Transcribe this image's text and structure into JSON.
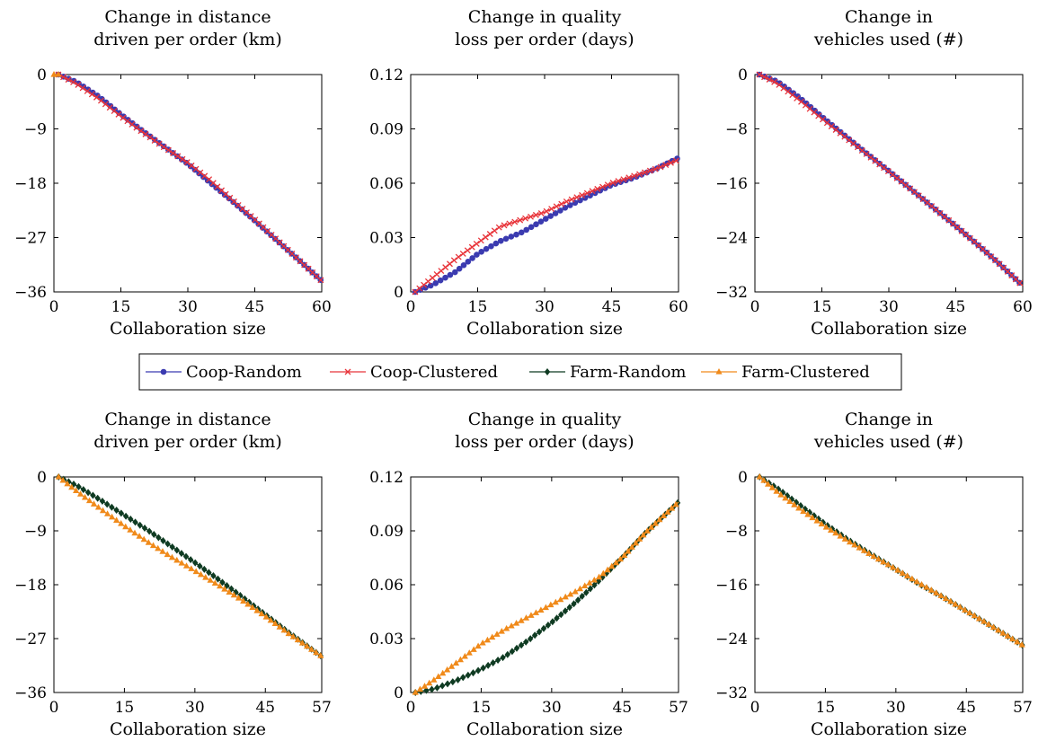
{
  "legend": {
    "entries": [
      {
        "label": "Coop-Random",
        "color": "#3b3bb0",
        "marker": "circle"
      },
      {
        "label": "Coop-Clustered",
        "color": "#e8343a",
        "marker": "x"
      },
      {
        "label": "Farm-Random",
        "color": "#0f3b22",
        "marker": "diamond"
      },
      {
        "label": "Farm-Clustered",
        "color": "#f08a1a",
        "marker": "triangle"
      }
    ]
  },
  "chart_data": [
    {
      "type": "line",
      "title": [
        "Change in distance",
        "driven per order (km)"
      ],
      "xlabel": "Collaboration size",
      "xlim": [
        0,
        60
      ],
      "ylim": [
        -36,
        0
      ],
      "xticks": [
        "0",
        "15",
        "30",
        "45",
        "60"
      ],
      "yticks": [
        "0",
        "−9",
        "−18",
        "−27",
        "−36"
      ],
      "series": [
        {
          "name": "Coop-Random",
          "color": "#3b3bb0",
          "marker": "circle",
          "x": [
            1,
            5,
            10,
            15,
            20,
            25,
            30,
            35,
            40,
            45,
            50,
            55,
            60
          ],
          "y": [
            0,
            -1.2,
            -3.6,
            -6.6,
            -9.4,
            -12.1,
            -14.8,
            -17.9,
            -21.0,
            -24.2,
            -27.5,
            -30.8,
            -34.2
          ]
        },
        {
          "name": "Coop-Clustered",
          "color": "#e8343a",
          "marker": "x",
          "x": [
            1,
            5,
            10,
            15,
            20,
            25,
            30,
            35,
            40,
            45,
            50,
            55,
            60
          ],
          "y": [
            0,
            -1.5,
            -4.0,
            -6.9,
            -9.6,
            -12.2,
            -14.6,
            -17.5,
            -20.8,
            -24.0,
            -27.4,
            -30.8,
            -34.2
          ]
        },
        {
          "name": "Farm-Clustered",
          "color": "#f08a1a",
          "marker": "triangle",
          "x": [
            0,
            1
          ],
          "y": [
            0,
            0
          ]
        }
      ]
    },
    {
      "type": "line",
      "title": [
        "Change in quality",
        "loss per order (days)"
      ],
      "xlabel": "Collaboration size",
      "xlim": [
        0,
        60
      ],
      "ylim": [
        0,
        0.12
      ],
      "xticks": [
        "0",
        "15",
        "30",
        "45",
        "60"
      ],
      "yticks": [
        "0.12",
        "0.09",
        "0.06",
        "0.03",
        "0"
      ],
      "series": [
        {
          "name": "Coop-Random",
          "color": "#3b3bb0",
          "marker": "circle",
          "x": [
            1,
            5,
            10,
            15,
            20,
            25,
            30,
            35,
            40,
            45,
            50,
            55,
            60
          ],
          "y": [
            0,
            0.004,
            0.011,
            0.021,
            0.028,
            0.033,
            0.04,
            0.047,
            0.053,
            0.059,
            0.063,
            0.068,
            0.074
          ]
        },
        {
          "name": "Coop-Clustered",
          "color": "#e8343a",
          "marker": "x",
          "x": [
            1,
            5,
            10,
            15,
            20,
            25,
            30,
            35,
            40,
            45,
            50,
            55,
            60
          ],
          "y": [
            0,
            0.008,
            0.018,
            0.027,
            0.036,
            0.04,
            0.044,
            0.05,
            0.055,
            0.06,
            0.064,
            0.068,
            0.073
          ]
        }
      ]
    },
    {
      "type": "line",
      "title": [
        "Change in",
        "vehicles used (#)"
      ],
      "xlabel": "Collaboration size",
      "xlim": [
        0,
        60
      ],
      "ylim": [
        -32,
        0
      ],
      "xticks": [
        "0",
        "15",
        "30",
        "45",
        "60"
      ],
      "yticks": [
        "0",
        "−8",
        "−16",
        "−24",
        "−32"
      ],
      "series": [
        {
          "name": "Coop-Random",
          "color": "#3b3bb0",
          "marker": "circle",
          "x": [
            1,
            5,
            10,
            15,
            20,
            25,
            30,
            35,
            40,
            45,
            50,
            55,
            60
          ],
          "y": [
            0,
            -1.0,
            -3.4,
            -6.2,
            -8.9,
            -11.6,
            -14.2,
            -16.9,
            -19.6,
            -22.3,
            -25.1,
            -28.0,
            -31.1
          ]
        },
        {
          "name": "Coop-Clustered",
          "color": "#e8343a",
          "marker": "x",
          "x": [
            1,
            5,
            10,
            15,
            20,
            25,
            30,
            35,
            40,
            45,
            50,
            55,
            60
          ],
          "y": [
            0,
            -1.3,
            -3.8,
            -6.5,
            -9.1,
            -11.7,
            -14.3,
            -16.9,
            -19.6,
            -22.3,
            -25.1,
            -28.0,
            -31.1
          ]
        }
      ]
    },
    {
      "type": "line",
      "title": [
        "Change in distance",
        "driven per order (km)"
      ],
      "xlabel": "Collaboration size",
      "xlim": [
        0,
        57
      ],
      "ylim": [
        -36,
        0
      ],
      "xticks": [
        "0",
        "15",
        "30",
        "45",
        "57"
      ],
      "yticks": [
        "0",
        "−9",
        "−18",
        "−27",
        "−36"
      ],
      "series": [
        {
          "name": "Farm-Random",
          "color": "#0f3b22",
          "marker": "diamond",
          "x": [
            1,
            5,
            10,
            15,
            20,
            25,
            30,
            35,
            40,
            45,
            50,
            57
          ],
          "y": [
            0,
            -1.5,
            -3.9,
            -6.4,
            -8.9,
            -11.6,
            -14.3,
            -17.1,
            -20.0,
            -23.0,
            -26.0,
            -30.0
          ]
        },
        {
          "name": "Farm-Clustered",
          "color": "#f08a1a",
          "marker": "triangle",
          "x": [
            1,
            5,
            10,
            15,
            20,
            25,
            30,
            35,
            40,
            45,
            50,
            57
          ],
          "y": [
            0,
            -2.5,
            -5.4,
            -8.2,
            -10.9,
            -13.4,
            -15.7,
            -18.1,
            -20.6,
            -23.3,
            -26.2,
            -30.0
          ]
        }
      ]
    },
    {
      "type": "line",
      "title": [
        "Change in quality",
        "loss per order (days)"
      ],
      "xlabel": "Collaboration size",
      "xlim": [
        0,
        57
      ],
      "ylim": [
        0,
        0.12
      ],
      "xticks": [
        "0",
        "15",
        "30",
        "45",
        "57"
      ],
      "yticks": [
        "0.12",
        "0.09",
        "0.06",
        "0.03",
        "0"
      ],
      "series": [
        {
          "name": "Farm-Random",
          "color": "#0f3b22",
          "marker": "diamond",
          "x": [
            1,
            5,
            10,
            15,
            20,
            25,
            30,
            35,
            40,
            45,
            50,
            57
          ],
          "y": [
            0,
            0.002,
            0.007,
            0.013,
            0.02,
            0.029,
            0.039,
            0.05,
            0.062,
            0.075,
            0.089,
            0.106
          ]
        },
        {
          "name": "Farm-Clustered",
          "color": "#f08a1a",
          "marker": "triangle",
          "x": [
            1,
            5,
            10,
            15,
            20,
            25,
            30,
            35,
            40,
            45,
            50,
            57
          ],
          "y": [
            0,
            0.007,
            0.017,
            0.027,
            0.035,
            0.042,
            0.049,
            0.056,
            0.064,
            0.075,
            0.089,
            0.106
          ]
        }
      ]
    },
    {
      "type": "line",
      "title": [
        "Change in",
        "vehicles used (#)"
      ],
      "xlabel": "Collaboration size",
      "xlim": [
        0,
        57
      ],
      "ylim": [
        -32,
        0
      ],
      "xticks": [
        "0",
        "15",
        "30",
        "45",
        "57"
      ],
      "yticks": [
        "0",
        "−8",
        "−16",
        "−24",
        "−32"
      ],
      "series": [
        {
          "name": "Farm-Random",
          "color": "#0f3b22",
          "marker": "diamond",
          "x": [
            1,
            5,
            10,
            15,
            20,
            25,
            30,
            35,
            40,
            45,
            50,
            57
          ],
          "y": [
            0,
            -1.8,
            -4.4,
            -7.0,
            -9.4,
            -11.6,
            -13.7,
            -15.9,
            -17.8,
            -19.9,
            -22.0,
            -25.0
          ]
        },
        {
          "name": "Farm-Clustered",
          "color": "#f08a1a",
          "marker": "triangle",
          "x": [
            1,
            5,
            10,
            15,
            20,
            25,
            30,
            35,
            40,
            45,
            50,
            57
          ],
          "y": [
            0,
            -2.4,
            -5.0,
            -7.4,
            -9.6,
            -11.7,
            -13.7,
            -15.8,
            -17.8,
            -19.9,
            -22.0,
            -25.0
          ]
        }
      ]
    }
  ]
}
